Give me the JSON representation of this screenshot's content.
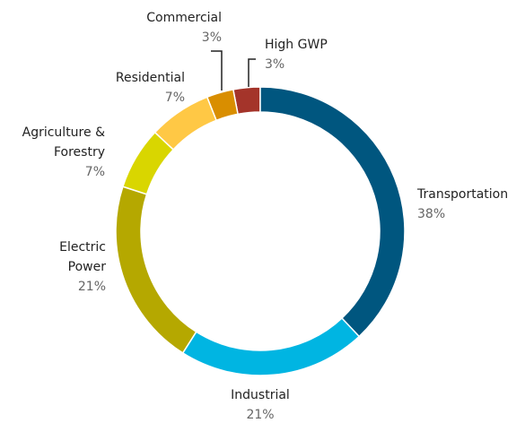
{
  "chart_data": {
    "type": "donut",
    "categories": [
      "Transportation",
      "Industrial",
      "Electric Power",
      "Agriculture & Forestry",
      "Residential",
      "Commercial",
      "High GWP"
    ],
    "values": [
      38,
      21,
      21,
      7,
      7,
      3,
      3
    ],
    "value_labels": [
      "38%",
      "21%",
      "21%",
      "7%",
      "7%",
      "3%",
      "3%"
    ],
    "colors": [
      "#00567f",
      "#00b5e2",
      "#b5a800",
      "#d9d600",
      "#ffc845",
      "#d98e00",
      "#a4342a"
    ]
  }
}
